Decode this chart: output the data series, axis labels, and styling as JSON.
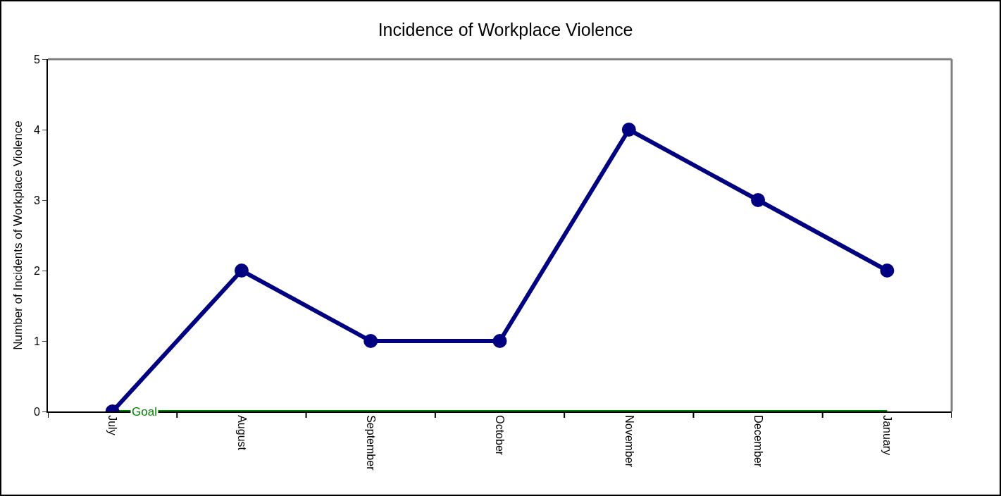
{
  "chart_data": {
    "type": "line",
    "title": "Incidence of Workplace Violence",
    "ylabel": "Number of Incidents of Workplace Violence",
    "categories": [
      "July",
      "August",
      "September",
      "October",
      "November",
      "December",
      "January"
    ],
    "series": [
      {
        "color": "#000080",
        "values": [
          0,
          2,
          1,
          1,
          4,
          3,
          2
        ]
      }
    ],
    "ylim": [
      0,
      5
    ],
    "yticks": [
      0,
      1,
      2,
      3,
      4,
      5
    ],
    "grid": false,
    "marker": "circle",
    "line_style": "solid",
    "ref_lines": [
      {
        "axis": "y",
        "value": 0,
        "label": "Goal",
        "color": "#008000"
      }
    ]
  }
}
